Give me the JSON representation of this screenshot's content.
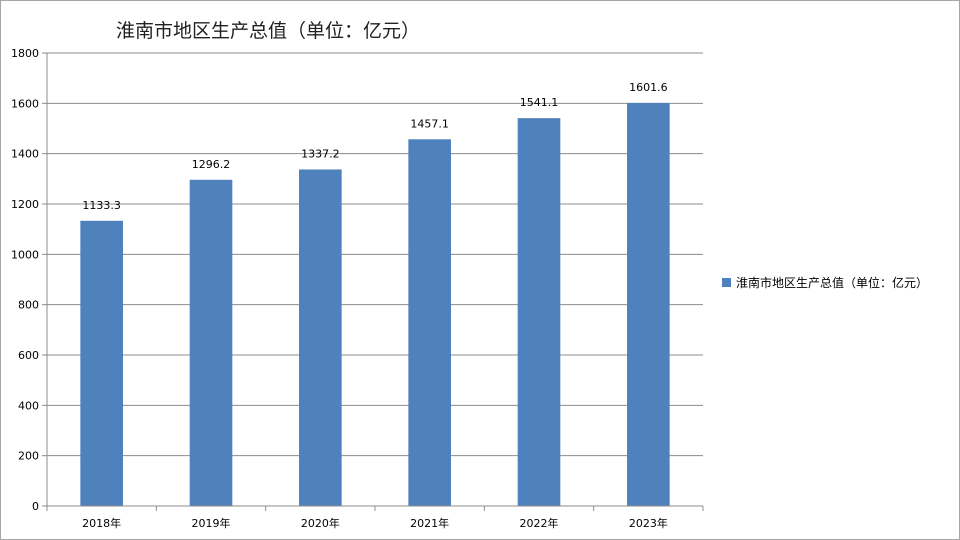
{
  "chart_data": {
    "type": "bar",
    "title": "淮南市地区生产总值（单位：亿元）",
    "categories": [
      "2018年",
      "2019年",
      "2020年",
      "2021年",
      "2022年",
      "2023年"
    ],
    "series": [
      {
        "name": "淮南市地区生产总值（单位：亿元）",
        "values": [
          1133.3,
          1296.2,
          1337.2,
          1457.1,
          1541.1,
          1601.6
        ],
        "data_labels": [
          "1133.3",
          "1296.2",
          "1337.2",
          "1457.1",
          "1541.1",
          "1601.6"
        ]
      }
    ],
    "y_ticks": [
      "0",
      "200",
      "400",
      "600",
      "800",
      "1000",
      "1200",
      "1400",
      "1600",
      "1800"
    ],
    "ylim": [
      0,
      1800
    ],
    "grid": true,
    "legend_position": "right",
    "colors": {
      "bar": "#4f81bd",
      "grid": "#8c8c8c",
      "axis": "#8c8c8c"
    }
  }
}
